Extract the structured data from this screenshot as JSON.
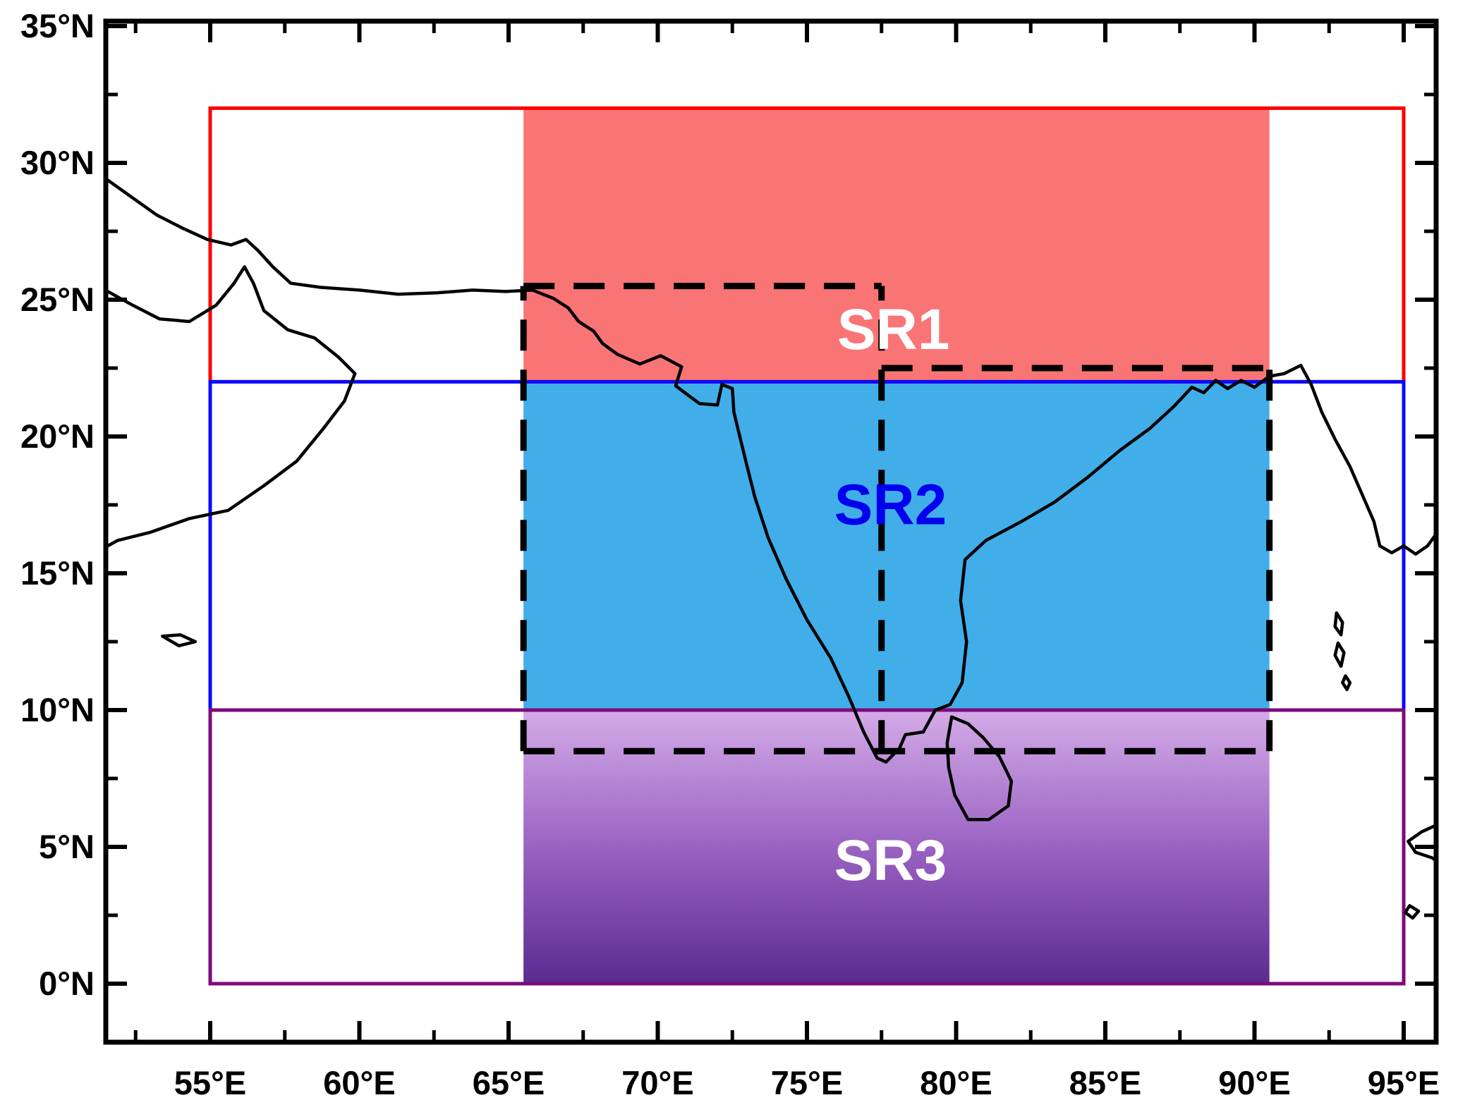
{
  "figure": {
    "kind": "geographic study-region map of the Indian subcontinent",
    "background": "#ffffff"
  },
  "chart_data": {
    "type": "map",
    "title": "",
    "x_axis": {
      "unit": "°E",
      "range_shown": [
        51.5,
        96.1
      ],
      "ticks": [
        55,
        60,
        65,
        70,
        75,
        80,
        85,
        90,
        95
      ],
      "tick_labels": [
        "55°E",
        "60°E",
        "65°E",
        "70°E",
        "75°E",
        "80°E",
        "85°E",
        "90°E",
        "95°E"
      ],
      "minor_ticks": [
        52.5,
        57.5,
        62.5,
        67.5,
        72.5,
        77.5,
        82.5,
        87.5,
        92.5
      ]
    },
    "y_axis": {
      "unit": "°N",
      "range_shown": [
        -2.1,
        35.2
      ],
      "ticks": [
        35,
        30,
        25,
        20,
        15,
        10,
        5,
        0
      ],
      "tick_labels": [
        "35°N",
        "30°N",
        "25°N",
        "20°N",
        "15°N",
        "10°N",
        "5°N",
        "0°N"
      ],
      "minor_ticks": [
        32.5,
        27.5,
        22.5,
        17.5,
        12.5,
        7.5,
        2.5
      ]
    },
    "regions": [
      {
        "id": "SR1",
        "label": "SR1",
        "outline": {
          "lon_min": 55,
          "lon_max": 95,
          "lat_min": 22,
          "lat_max": 32,
          "color": "#ff0000"
        },
        "shade": {
          "lon_min": 65.5,
          "lon_max": 90.5,
          "fill": "#f97575"
        },
        "label_color": "#ffffff",
        "label_lon": 77.9,
        "label_lat": 23.9
      },
      {
        "id": "SR2",
        "label": "SR2",
        "outline": {
          "lon_min": 55,
          "lon_max": 95,
          "lat_min": 10,
          "lat_max": 22,
          "color": "#0a0aff"
        },
        "shade": {
          "lon_min": 65.5,
          "lon_max": 90.5,
          "fill": "#41aeea"
        },
        "label_color": "#0000ee",
        "label_lon": 77.8,
        "label_lat": 17.5
      },
      {
        "id": "SR3",
        "label": "SR3",
        "outline": {
          "lon_min": 55,
          "lon_max": 95,
          "lat_min": 0,
          "lat_max": 10,
          "color": "#7d0a7d"
        },
        "shade": {
          "lon_min": 65.5,
          "lon_max": 90.5,
          "gradient": [
            "#d4abe8",
            "#9a63c2",
            "#5b2b90"
          ]
        },
        "label_color": "#ffffff",
        "label_lon": 77.8,
        "label_lat": 4.5
      }
    ],
    "dashed_overlay": {
      "color": "#000000",
      "segments": [
        {
          "orient": "h",
          "lat": 25.5,
          "lon": [
            65.5,
            77.5
          ]
        },
        {
          "orient": "h",
          "lat": 22.5,
          "lon": [
            77.5,
            90.5
          ]
        },
        {
          "orient": "h",
          "lat": 8.5,
          "lon": [
            65.5,
            90.5
          ]
        },
        {
          "orient": "v",
          "lon": 65.5,
          "lat": [
            8.5,
            25.5
          ]
        },
        {
          "orient": "v",
          "lon": 90.5,
          "lat": [
            8.5,
            22.5
          ]
        },
        {
          "orient": "v",
          "lon": 77.5,
          "lat": [
            8.5,
            25.5
          ]
        }
      ]
    },
    "coastline_color": "#000000"
  }
}
